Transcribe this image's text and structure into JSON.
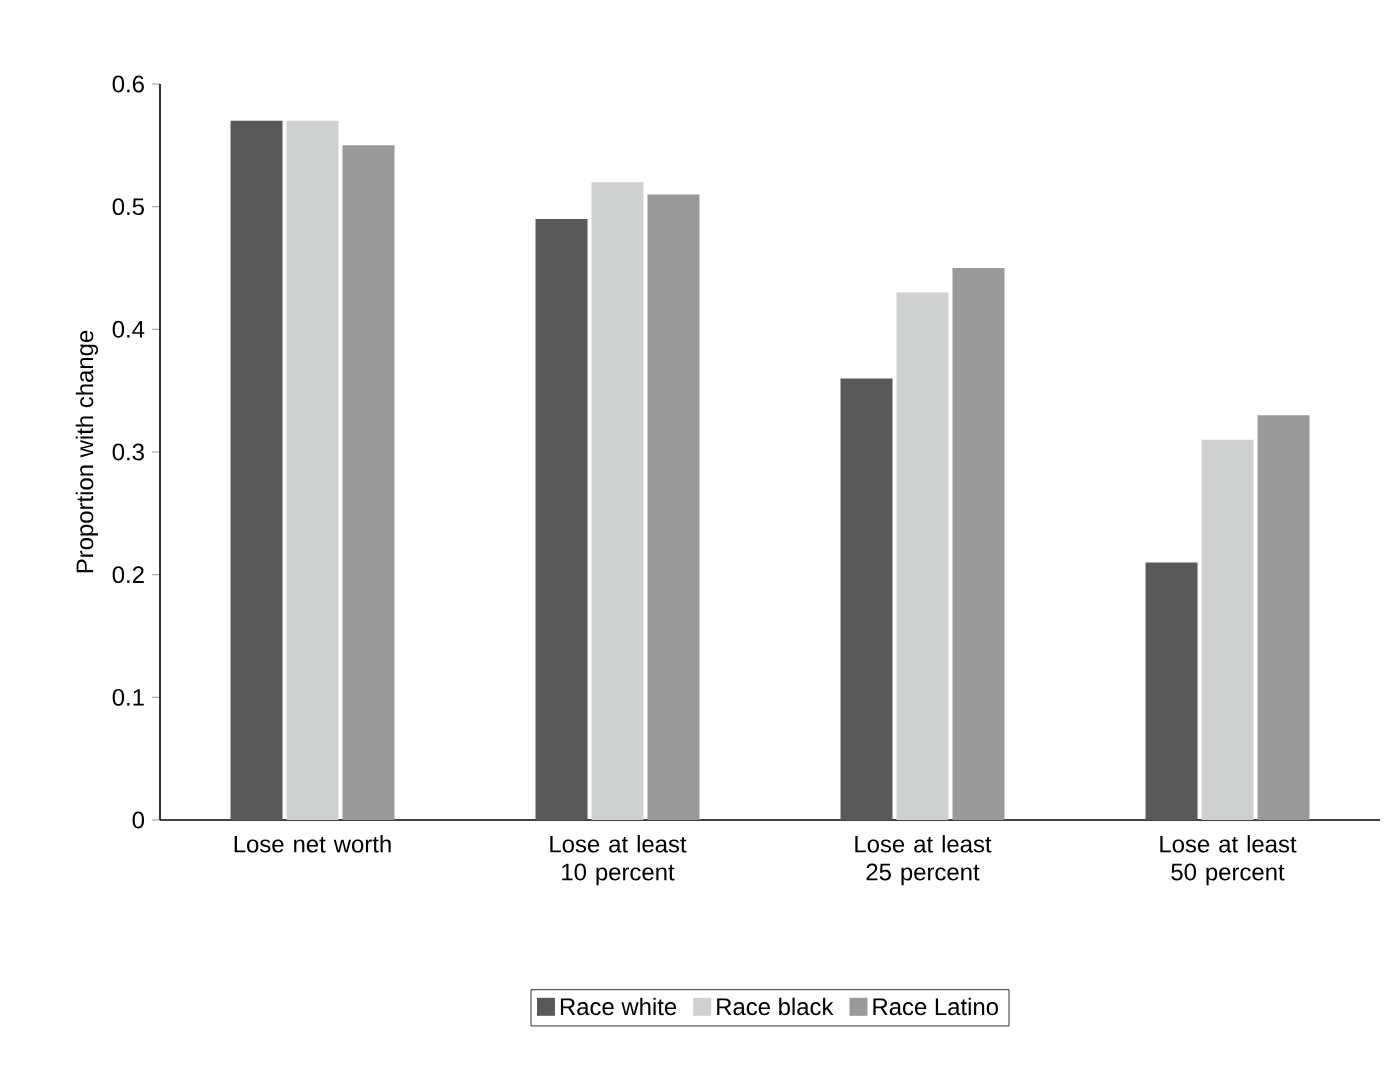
{
  "chart_data": {
    "type": "bar",
    "ylabel": "Proportion with change",
    "categories": [
      "Lose net worth",
      "Lose at least 10 percent",
      "Lose at least 25 percent",
      "Lose at least 50 percent"
    ],
    "series": [
      {
        "name": "Race white",
        "color": "#595959",
        "values": [
          0.57,
          0.49,
          0.36,
          0.21
        ]
      },
      {
        "name": "Race black",
        "color": "#cfd0d0",
        "values": [
          0.57,
          0.52,
          0.43,
          0.31
        ]
      },
      {
        "name": "Race Latino",
        "color": "#999999",
        "values": [
          0.55,
          0.51,
          0.45,
          0.33
        ]
      }
    ],
    "ylim": [
      0,
      0.6
    ],
    "yticks": [
      0,
      0.1,
      0.2,
      0.3,
      0.4,
      0.5,
      0.6
    ],
    "grid": false,
    "legend": "bottom"
  }
}
